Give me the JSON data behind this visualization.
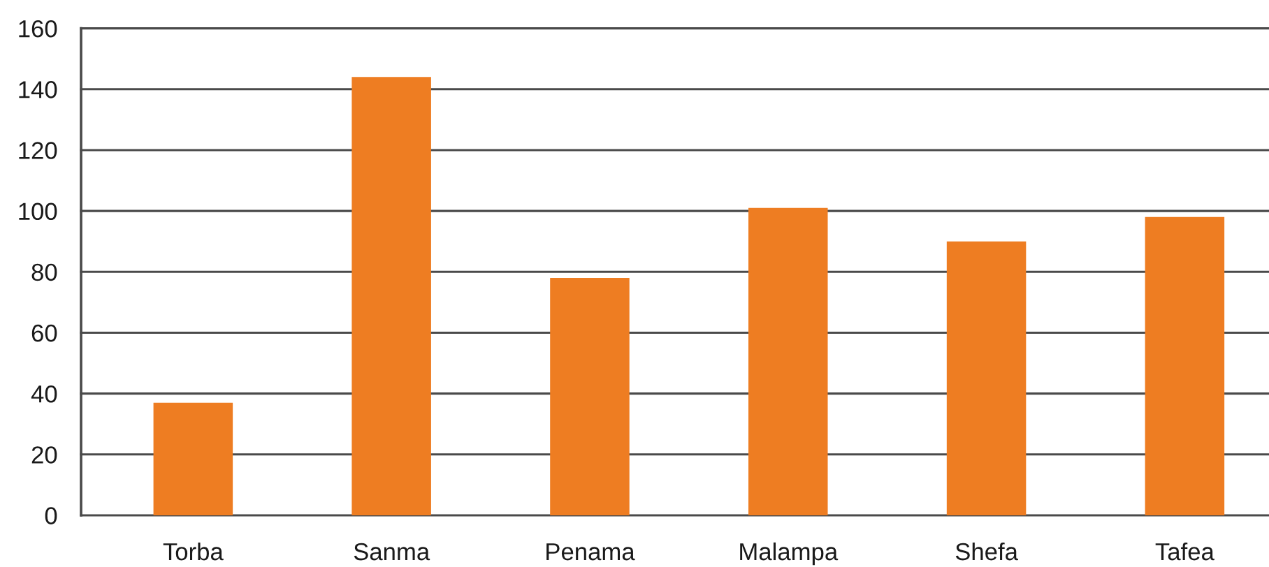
{
  "chart_data": {
    "type": "bar",
    "categories": [
      "Torba",
      "Sanma",
      "Penama",
      "Malampa",
      "Shefa",
      "Tafea"
    ],
    "values": [
      37,
      144,
      78,
      101,
      90,
      98
    ],
    "color": "#ee7d22",
    "ylim": [
      0,
      160
    ],
    "yticks": [
      0,
      20,
      40,
      60,
      80,
      100,
      120,
      140,
      160
    ],
    "grid": "y"
  }
}
